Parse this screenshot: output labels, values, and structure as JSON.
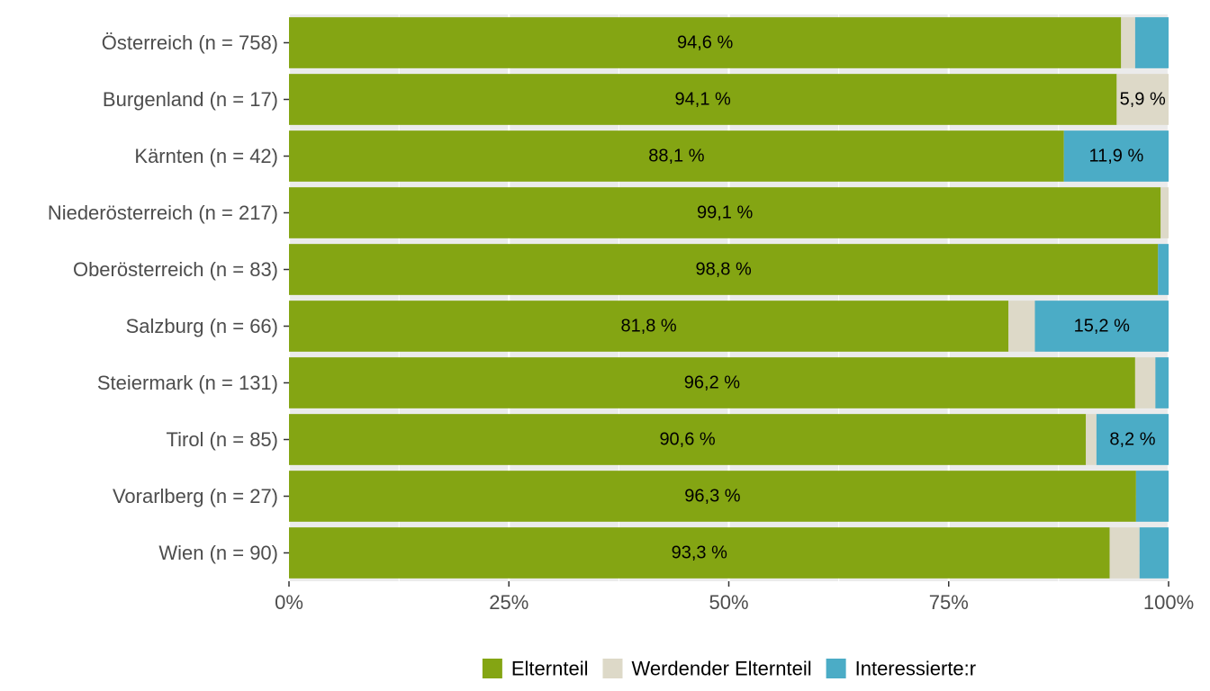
{
  "chart_data": {
    "type": "bar",
    "orientation": "horizontal",
    "stacked": true,
    "categories": [
      "Österreich (n = 758)",
      "Burgenland (n = 17)",
      "Kärnten (n = 42)",
      "Niederösterreich (n = 217)",
      "Oberösterreich (n = 83)",
      "Salzburg (n = 66)",
      "Steiermark (n = 131)",
      "Tirol (n = 85)",
      "Vorarlberg (n = 27)",
      "Wien (n = 90)"
    ],
    "series": [
      {
        "name": "Elternteil",
        "color": "#84a513",
        "values": [
          94.6,
          94.1,
          88.1,
          99.1,
          98.8,
          81.8,
          96.2,
          90.6,
          96.3,
          93.3
        ],
        "labels": [
          "94,6 %",
          "94,1 %",
          "88,1 %",
          "99,1 %",
          "98,8 %",
          "81,8 %",
          "96,2 %",
          "90,6 %",
          "96,3 %",
          "93,3 %"
        ]
      },
      {
        "name": "Werdender Elternteil",
        "color": "#ddd9c8",
        "values": [
          1.6,
          5.9,
          0,
          0.9,
          0,
          3.0,
          2.3,
          1.2,
          0,
          3.4
        ],
        "labels": [
          "",
          "5,9 %",
          "",
          "",
          "",
          "",
          "",
          "",
          "",
          ""
        ]
      },
      {
        "name": "Interessierte:r",
        "color": "#4bacc6",
        "values": [
          3.8,
          0,
          11.9,
          0,
          1.2,
          15.2,
          1.5,
          8.2,
          3.7,
          3.3
        ],
        "labels": [
          "",
          "",
          "11,9 %",
          "",
          "",
          "15,2 %",
          "",
          "8,2 %",
          "",
          ""
        ]
      }
    ],
    "x_ticks": [
      "0%",
      "25%",
      "50%",
      "75%",
      "100%"
    ],
    "xlim": [
      0,
      100
    ],
    "grid": true,
    "legend_position": "bottom",
    "panel_background": "#ebebeb",
    "title": "",
    "xlabel": "",
    "ylabel": ""
  }
}
